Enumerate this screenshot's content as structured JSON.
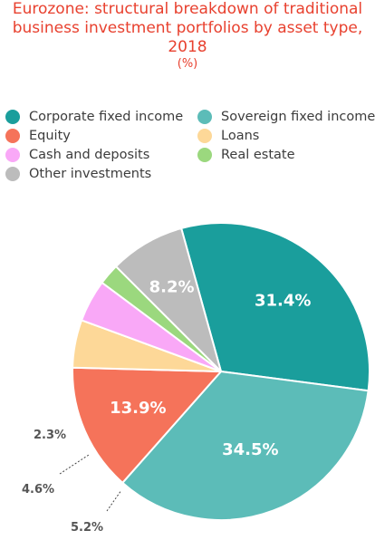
{
  "chart_data": {
    "type": "pie",
    "title_lines": [
      "Eurozone: structural breakdown of traditional",
      "business investment portfolios by asset type,",
      "2018"
    ],
    "unit": "(%)",
    "slices": [
      {
        "name": "Corporate fixed income",
        "value": 31.4,
        "label": "31.4%",
        "color": "#1a9e9c"
      },
      {
        "name": "Sovereign fixed income",
        "value": 34.5,
        "label": "34.5%",
        "color": "#5cbcb8"
      },
      {
        "name": "Equity",
        "value": 13.9,
        "label": "13.9%",
        "color": "#f5735a"
      },
      {
        "name": "Loans",
        "value": 5.2,
        "label": "5.2%",
        "color": "#fdd898"
      },
      {
        "name": "Cash and deposits",
        "value": 4.6,
        "label": "4.6%",
        "color": "#f9a8f7"
      },
      {
        "name": "Real estate",
        "value": 2.3,
        "label": "2.3%",
        "color": "#9bd87e"
      },
      {
        "name": "Other investments",
        "value": 8.2,
        "label": "8.2%",
        "color": "#bcbcbc"
      }
    ],
    "legend": [
      {
        "name": "Corporate fixed income",
        "color": "#1a9e9c"
      },
      {
        "name": "Sovereign fixed income",
        "color": "#5cbcb8"
      },
      {
        "name": "Equity",
        "color": "#f5735a"
      },
      {
        "name": "Loans",
        "color": "#fdd898"
      },
      {
        "name": "Cash and deposits",
        "color": "#f9a8f7"
      },
      {
        "name": "Real estate",
        "color": "#9bd87e"
      },
      {
        "name": "Other investments",
        "color": "#bcbcbc"
      }
    ]
  }
}
